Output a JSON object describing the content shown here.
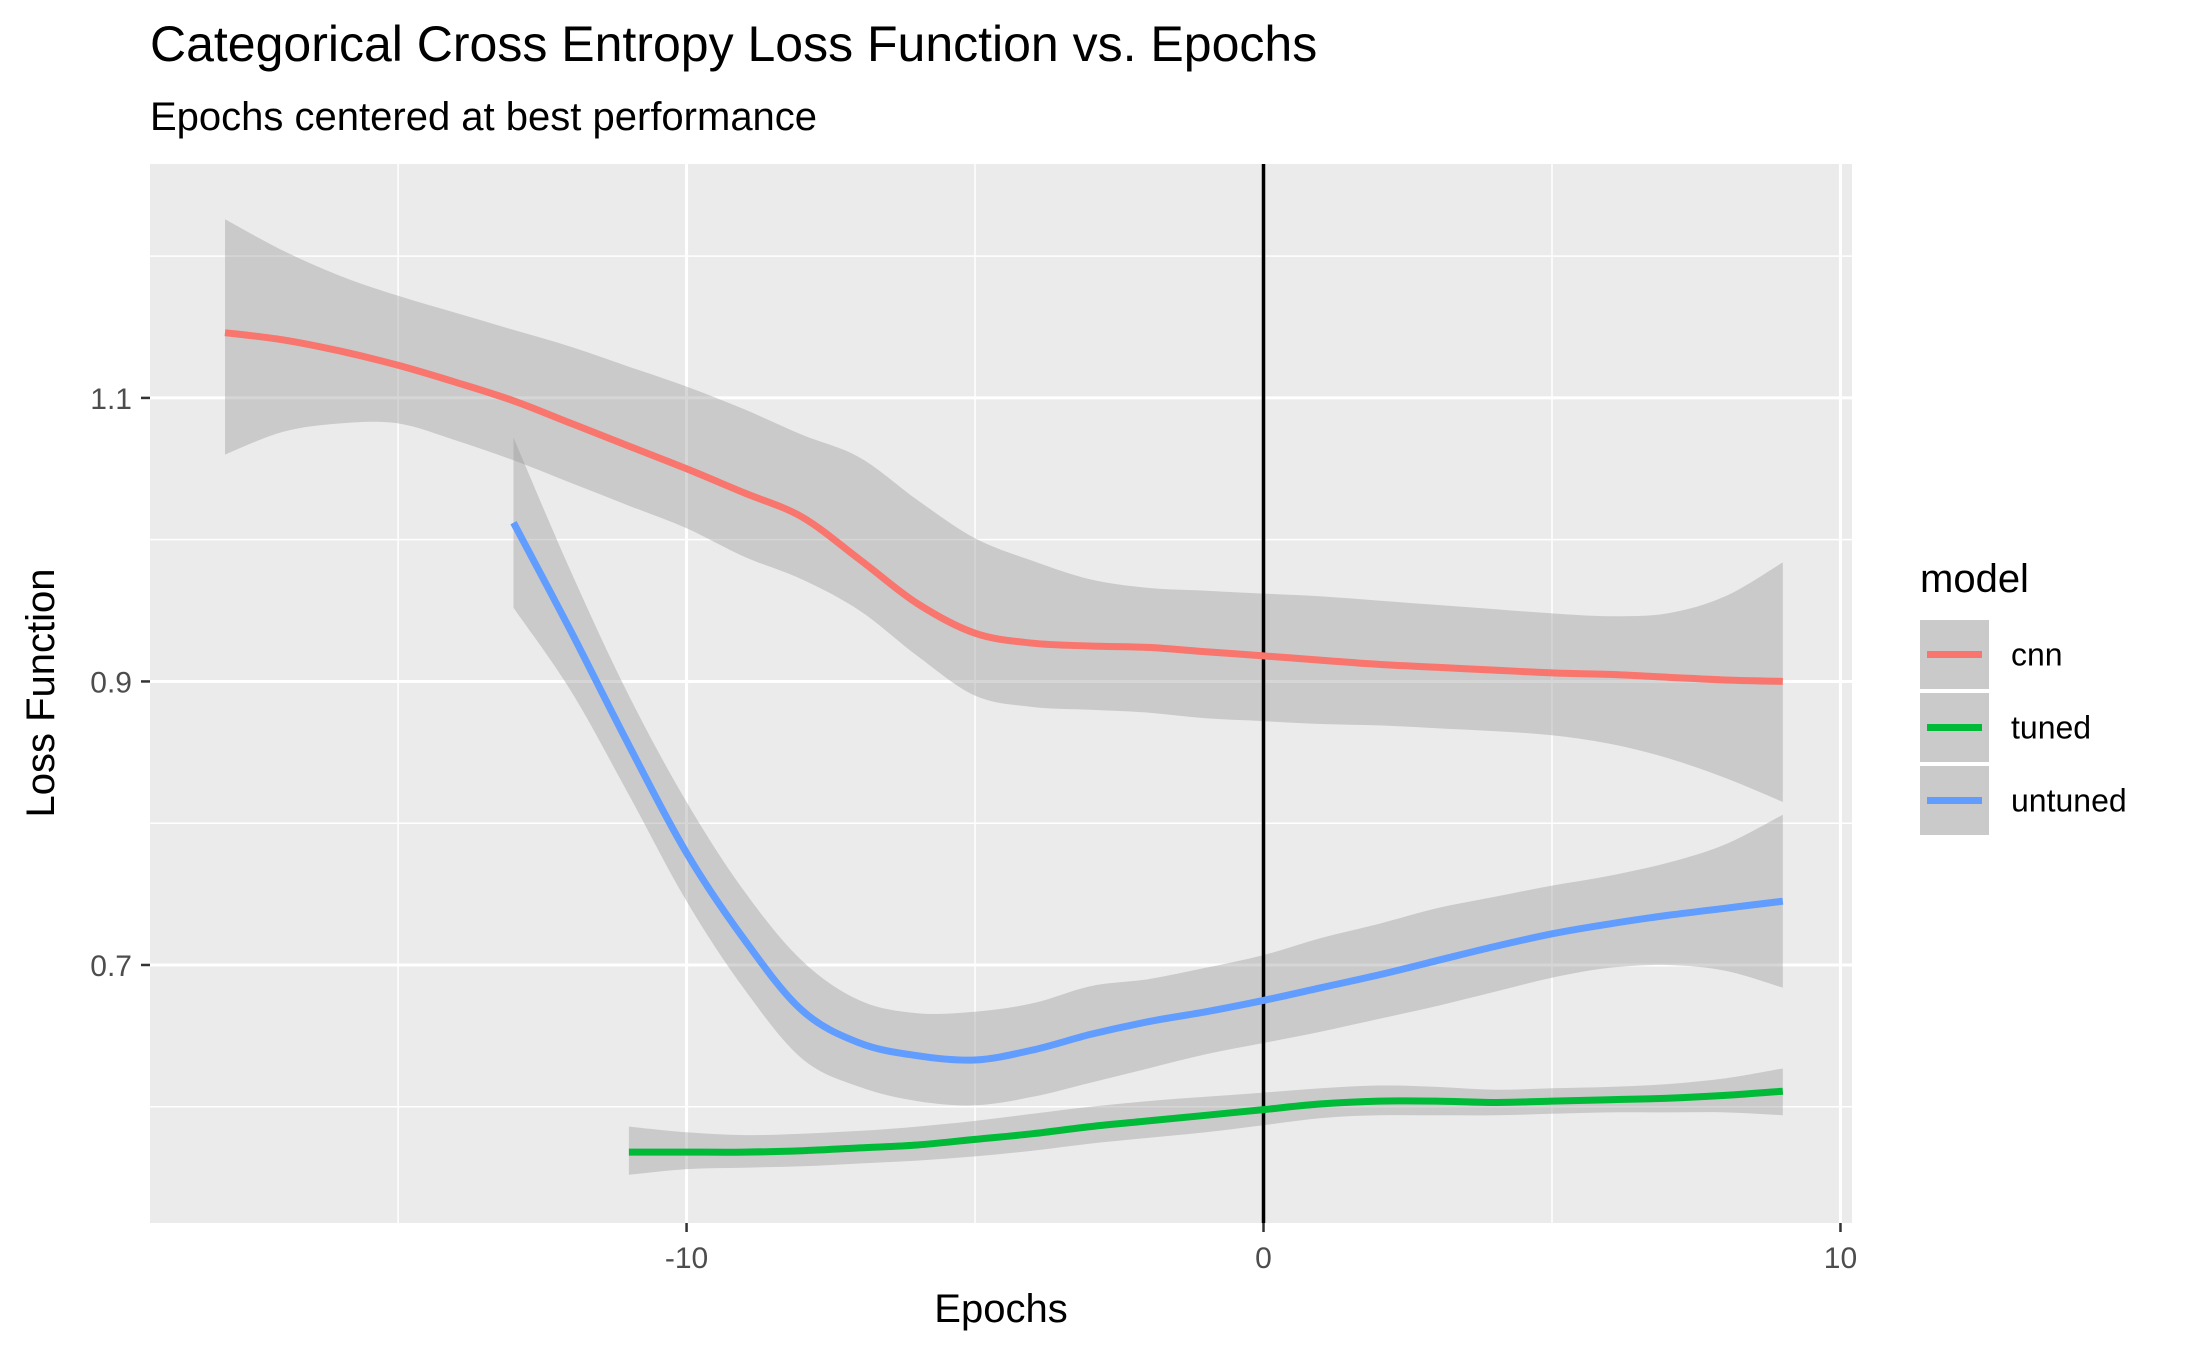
{
  "chart_data": {
    "type": "line",
    "title": "Categorical Cross Entropy Loss Function vs. Epochs",
    "subtitle": "Epochs centered at best performance",
    "xlabel": "Epochs",
    "ylabel": "Loss Function",
    "xlim": [
      -19.3,
      10.2
    ],
    "ylim": [
      0.518,
      1.265
    ],
    "x_ticks": [
      -10,
      0,
      10
    ],
    "x_tick_labels": [
      "-10",
      "0",
      "10"
    ],
    "x_minor_ticks": [
      -15,
      -5,
      5
    ],
    "y_ticks": [
      0.7,
      0.9,
      1.1
    ],
    "y_tick_labels": [
      "0.7",
      "0.9",
      "1.1"
    ],
    "y_minor_ticks": [
      0.6,
      0.8,
      1.0,
      1.2
    ],
    "grid": true,
    "reference_line": {
      "x": 0,
      "color": "#000000"
    },
    "legend": {
      "title": "model",
      "position": "right"
    },
    "series": [
      {
        "name": "cnn",
        "color": "#F8766D",
        "points": [
          [
            -18,
            1.146
          ],
          [
            -17,
            1.141
          ],
          [
            -16,
            1.133
          ],
          [
            -15,
            1.123
          ],
          [
            -14,
            1.111
          ],
          [
            -13,
            1.098
          ],
          [
            -12,
            1.082
          ],
          [
            -11,
            1.066
          ],
          [
            -10,
            1.05
          ],
          [
            -9,
            1.033
          ],
          [
            -8,
            1.016
          ],
          [
            -7,
            0.986
          ],
          [
            -6,
            0.955
          ],
          [
            -5,
            0.934
          ],
          [
            -4,
            0.927
          ],
          [
            -3,
            0.925
          ],
          [
            -2,
            0.924
          ],
          [
            -1,
            0.921
          ],
          [
            0,
            0.918
          ],
          [
            1,
            0.915
          ],
          [
            2,
            0.912
          ],
          [
            3,
            0.91
          ],
          [
            4,
            0.908
          ],
          [
            5,
            0.906
          ],
          [
            6,
            0.905
          ],
          [
            7,
            0.903
          ],
          [
            8,
            0.901
          ],
          [
            9,
            0.9
          ]
        ],
        "ci_upper": [
          1.226,
          1.204,
          1.186,
          1.172,
          1.16,
          1.148,
          1.136,
          1.122,
          1.108,
          1.092,
          1.074,
          1.058,
          1.028,
          1.001,
          0.985,
          0.972,
          0.966,
          0.964,
          0.962,
          0.96,
          0.957,
          0.954,
          0.951,
          0.948,
          0.946,
          0.948,
          0.96,
          0.984
        ],
        "ci_lower": [
          1.06,
          1.076,
          1.082,
          1.082,
          1.07,
          1.056,
          1.04,
          1.024,
          1.008,
          0.988,
          0.972,
          0.95,
          0.918,
          0.89,
          0.882,
          0.88,
          0.878,
          0.874,
          0.872,
          0.87,
          0.869,
          0.867,
          0.865,
          0.862,
          0.856,
          0.846,
          0.832,
          0.815
        ]
      },
      {
        "name": "tuned",
        "color": "#00BA38",
        "points": [
          [
            -11,
            0.568
          ],
          [
            -10,
            0.568
          ],
          [
            -9,
            0.568
          ],
          [
            -8,
            0.569
          ],
          [
            -7,
            0.571
          ],
          [
            -6,
            0.573
          ],
          [
            -5,
            0.577
          ],
          [
            -4,
            0.581
          ],
          [
            -3,
            0.586
          ],
          [
            -2,
            0.59
          ],
          [
            -1,
            0.594
          ],
          [
            0,
            0.598
          ],
          [
            1,
            0.602
          ],
          [
            2,
            0.604
          ],
          [
            3,
            0.604
          ],
          [
            4,
            0.603
          ],
          [
            5,
            0.604
          ],
          [
            6,
            0.605
          ],
          [
            7,
            0.606
          ],
          [
            8,
            0.608
          ],
          [
            9,
            0.611
          ]
        ],
        "ci_upper": [
          0.586,
          0.582,
          0.58,
          0.581,
          0.583,
          0.586,
          0.59,
          0.595,
          0.6,
          0.604,
          0.607,
          0.61,
          0.613,
          0.615,
          0.614,
          0.612,
          0.613,
          0.614,
          0.616,
          0.62,
          0.627
        ],
        "ci_lower": [
          0.552,
          0.556,
          0.557,
          0.558,
          0.56,
          0.562,
          0.565,
          0.569,
          0.574,
          0.578,
          0.582,
          0.587,
          0.592,
          0.594,
          0.594,
          0.594,
          0.595,
          0.596,
          0.596,
          0.596,
          0.594
        ]
      },
      {
        "name": "untuned",
        "color": "#619CFF",
        "points": [
          [
            -13,
            1.012
          ],
          [
            -12,
            0.935
          ],
          [
            -11,
            0.855
          ],
          [
            -10,
            0.779
          ],
          [
            -9,
            0.718
          ],
          [
            -8,
            0.668
          ],
          [
            -7,
            0.645
          ],
          [
            -6,
            0.636
          ],
          [
            -5,
            0.633
          ],
          [
            -4,
            0.64
          ],
          [
            -3,
            0.651
          ],
          [
            -2,
            0.66
          ],
          [
            -1,
            0.667
          ],
          [
            0,
            0.675
          ],
          [
            1,
            0.684
          ],
          [
            2,
            0.693
          ],
          [
            3,
            0.703
          ],
          [
            4,
            0.713
          ],
          [
            5,
            0.722
          ],
          [
            6,
            0.729
          ],
          [
            7,
            0.735
          ],
          [
            8,
            0.74
          ],
          [
            9,
            0.745
          ]
        ],
        "ci_upper": [
          1.072,
          0.977,
          0.89,
          0.815,
          0.752,
          0.703,
          0.675,
          0.666,
          0.667,
          0.673,
          0.685,
          0.69,
          0.698,
          0.707,
          0.719,
          0.729,
          0.74,
          0.748,
          0.756,
          0.763,
          0.772,
          0.785,
          0.806
        ],
        "ci_lower": [
          0.952,
          0.893,
          0.82,
          0.745,
          0.683,
          0.634,
          0.614,
          0.604,
          0.601,
          0.607,
          0.617,
          0.627,
          0.637,
          0.645,
          0.653,
          0.662,
          0.671,
          0.681,
          0.691,
          0.698,
          0.7,
          0.696,
          0.684
        ]
      }
    ]
  }
}
